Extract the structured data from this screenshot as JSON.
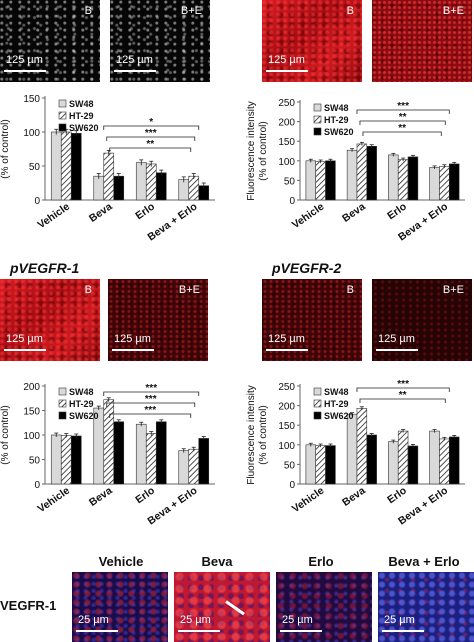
{
  "panels": {
    "top_left": {
      "left_label": "B",
      "right_label": "B+E",
      "scale": "125 µm"
    },
    "top_right": {
      "left_label": "B",
      "right_label": "B+E",
      "scale": "125 µm"
    },
    "pvegfr1": {
      "title": "pVEGFR-1",
      "left_label": "B",
      "right_label": "B+E",
      "scale": "125 µm"
    },
    "pvegfr2": {
      "title": "pVEGFR-2",
      "left_label": "B",
      "right_label": "B+E",
      "scale": "125 µm"
    }
  },
  "bottom_row": {
    "row_label": "VEGFR-1",
    "columns": [
      "Vehicle",
      "Beva",
      "Erlo",
      "Beva + Erlo"
    ],
    "scale": "25 µm"
  },
  "colors": {
    "sw48": "#d9d9d9",
    "ht29": "hatched",
    "sw620": "#000000",
    "axis": "#666666"
  },
  "chart_data": [
    {
      "type": "bar",
      "ylabel": "Fluorescence intensity (% of control)",
      "ylabel_visible": "(% of control)",
      "categories": [
        "Vehicle",
        "Beva",
        "Erlo",
        "Beva + Erlo"
      ],
      "ylim": [
        0,
        150
      ],
      "yticks": [
        0,
        50,
        100,
        150
      ],
      "series": [
        {
          "name": "SW48",
          "values": [
            100,
            35,
            55,
            30
          ]
        },
        {
          "name": "HT-29",
          "values": [
            100,
            69,
            53,
            35
          ]
        },
        {
          "name": "SW620",
          "values": [
            98,
            35,
            40,
            21
          ]
        }
      ],
      "significance": [
        "*",
        "***",
        "**"
      ]
    },
    {
      "type": "bar",
      "ylabel": "Fluorescence intensity (% of control)",
      "categories": [
        "Vehicle",
        "Beva",
        "Erlo",
        "Beva + Erlo"
      ],
      "ylim": [
        0,
        250
      ],
      "yticks": [
        0,
        50,
        100,
        150,
        200,
        250
      ],
      "series": [
        {
          "name": "SW48",
          "values": [
            100,
            127,
            115,
            83
          ]
        },
        {
          "name": "HT-29",
          "values": [
            98,
            143,
            103,
            86
          ]
        },
        {
          "name": "SW620",
          "values": [
            100,
            137,
            110,
            92
          ]
        }
      ],
      "significance": [
        "***",
        "**",
        "**"
      ]
    },
    {
      "type": "bar",
      "ylabel": "Fluorescence intensity (% of control)",
      "categories": [
        "Vehicle",
        "Beva",
        "Erlo",
        "Beva + Erlo"
      ],
      "ylim": [
        0,
        200
      ],
      "yticks": [
        0,
        50,
        100,
        150,
        200
      ],
      "series": [
        {
          "name": "SW48",
          "values": [
            100,
            155,
            122,
            68
          ]
        },
        {
          "name": "HT-29",
          "values": [
            99,
            172,
            103,
            71
          ]
        },
        {
          "name": "SW620",
          "values": [
            98,
            127,
            127,
            93
          ]
        }
      ],
      "significance": [
        "***",
        "***",
        "***"
      ]
    },
    {
      "type": "bar",
      "ylabel": "Fluorescence intensity (% of control)",
      "categories": [
        "Vehicle",
        "Beva",
        "Erlo",
        "Beva + Erlo"
      ],
      "ylim": [
        0,
        250
      ],
      "yticks": [
        0,
        50,
        100,
        150,
        200,
        250
      ],
      "series": [
        {
          "name": "SW48",
          "values": [
            100,
            178,
            108,
            135
          ]
        },
        {
          "name": "HT-29",
          "values": [
            98,
            193,
            135,
            115
          ]
        },
        {
          "name": "SW620",
          "values": [
            98,
            125,
            97,
            120
          ]
        }
      ],
      "significance": [
        "***",
        "**"
      ]
    }
  ]
}
